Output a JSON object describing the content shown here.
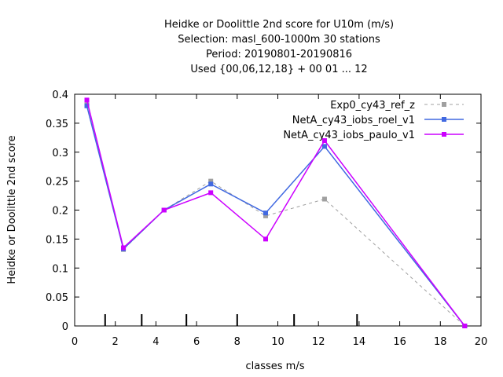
{
  "chart_data": {
    "type": "line",
    "title_lines": [
      "Heidke or Doolittle 2nd score  for U10m (m/s)",
      "Selection: masl_600-1000m     30 stations",
      "Period: 20190801-20190816",
      "Used {00,06,12,18} + 00 01 ... 12"
    ],
    "xlabel": "classes m/s",
    "ylabel": "Heidke or Doolittle 2nd score",
    "xlim": [
      0,
      20
    ],
    "ylim": [
      0,
      0.4
    ],
    "x_ticks": [
      "0",
      "2",
      "4",
      "6",
      "8",
      "10",
      "12",
      "14",
      "16",
      "18",
      "20"
    ],
    "y_ticks": [
      "0",
      "0.05",
      "0.1",
      "0.15",
      "0.2",
      "0.25",
      "0.3",
      "0.35",
      "0.4"
    ],
    "class_boundaries": [
      1.5,
      3.3,
      5.5,
      8.0,
      10.8,
      13.9
    ],
    "legend_position": "top-right",
    "series": [
      {
        "name": "Exp0_cy43_ref_z",
        "color": "#a0a0a0",
        "dashed": true,
        "x": [
          0.6,
          2.4,
          4.4,
          6.7,
          9.4,
          12.3,
          19.2
        ],
        "y": [
          0.382,
          0.132,
          0.2,
          0.25,
          0.19,
          0.219,
          0.0
        ]
      },
      {
        "name": "NetA_cy43_iobs_roel_v1",
        "color": "#4169e1",
        "dashed": false,
        "x": [
          0.6,
          2.4,
          4.4,
          6.7,
          9.4,
          12.3,
          19.2
        ],
        "y": [
          0.38,
          0.133,
          0.2,
          0.245,
          0.195,
          0.31,
          0.0
        ]
      },
      {
        "name": "NetA_cy43_iobs_paulo_v1",
        "color": "#cc00ff",
        "dashed": false,
        "x": [
          0.6,
          2.4,
          4.4,
          6.7,
          9.4,
          12.3,
          19.2
        ],
        "y": [
          0.39,
          0.135,
          0.2,
          0.23,
          0.15,
          0.32,
          0.0
        ]
      }
    ]
  }
}
